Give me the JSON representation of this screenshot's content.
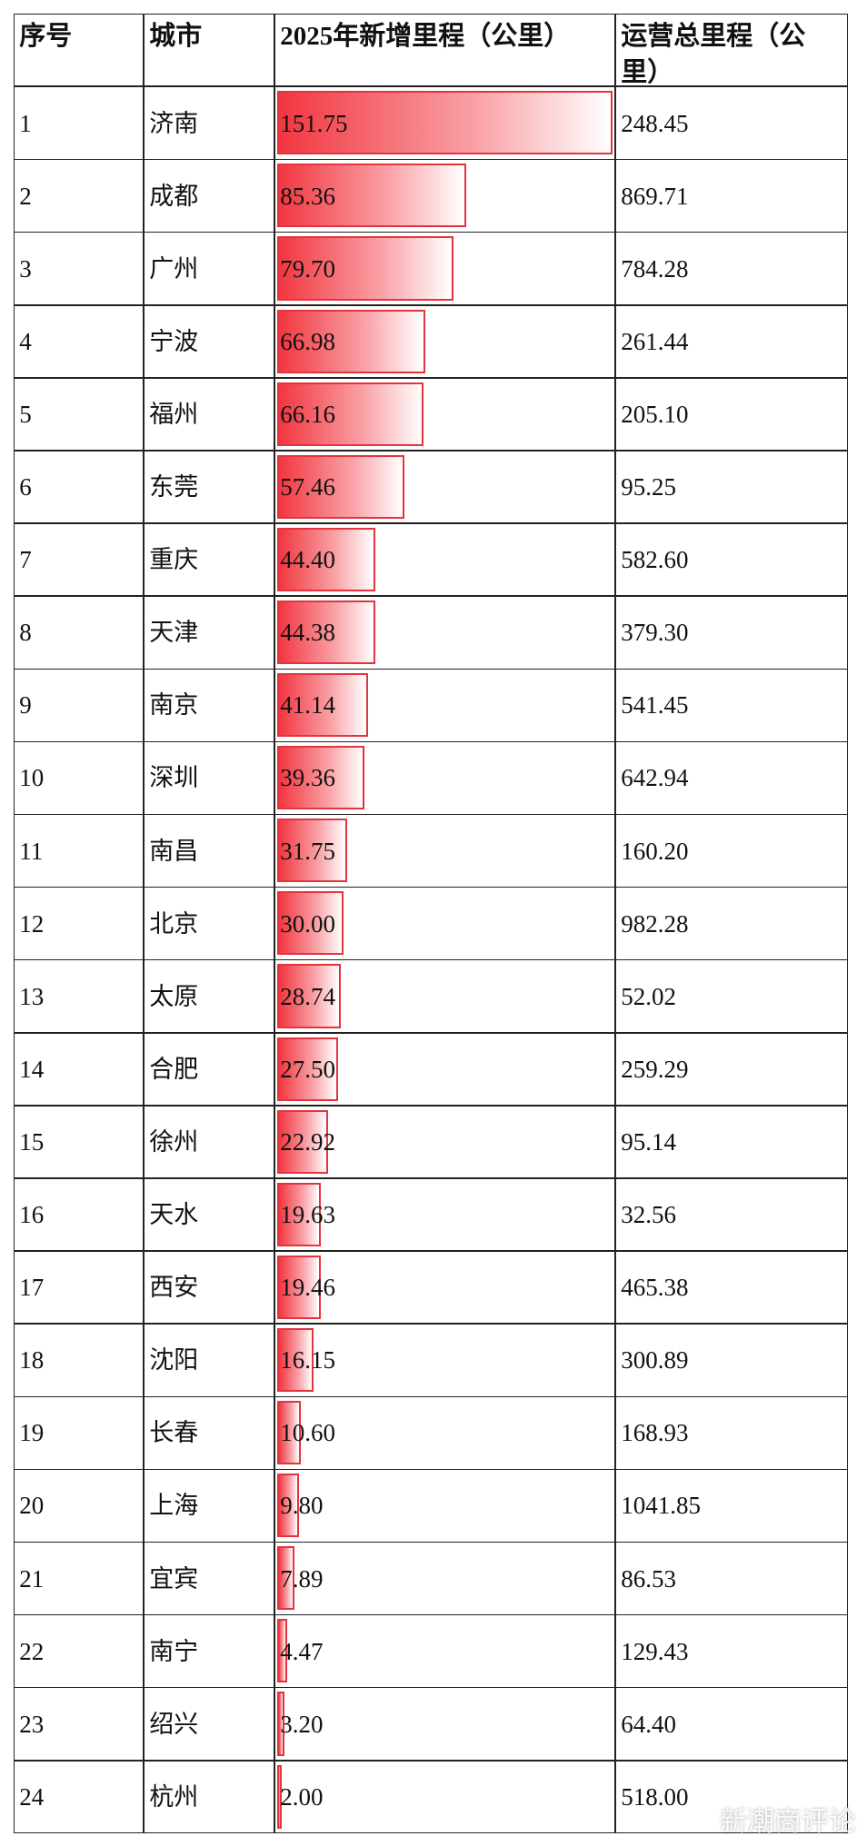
{
  "table": {
    "header": [
      "序号",
      "城市",
      "2025年新增里程（公里）",
      "运营总里程（公里）"
    ],
    "rows": [
      [
        "1",
        "济南",
        "151.75",
        "248.45"
      ],
      [
        "2",
        "成都",
        "85.36",
        "869.71"
      ],
      [
        "3",
        "广州",
        "79.70",
        "784.28"
      ],
      [
        "4",
        "宁波",
        "66.98",
        "261.44"
      ],
      [
        "5",
        "福州",
        "66.16",
        "205.10"
      ],
      [
        "6",
        "东莞",
        "57.46",
        "95.25"
      ],
      [
        "7",
        "重庆",
        "44.40",
        "582.60"
      ],
      [
        "8",
        "天津",
        "44.38",
        "379.30"
      ],
      [
        "9",
        "南京",
        "41.14",
        "541.45"
      ],
      [
        "10",
        "深圳",
        "39.36",
        "642.94"
      ],
      [
        "11",
        "南昌",
        "31.75",
        "160.20"
      ],
      [
        "12",
        "北京",
        "30.00",
        "982.28"
      ],
      [
        "13",
        "太原",
        "28.74",
        "52.02"
      ],
      [
        "14",
        "合肥",
        "27.50",
        "259.29"
      ],
      [
        "15",
        "徐州",
        "22.92",
        "95.14"
      ],
      [
        "16",
        "天水",
        "19.63",
        "32.56"
      ],
      [
        "17",
        "西安",
        "19.46",
        "465.38"
      ],
      [
        "18",
        "沈阳",
        "16.15",
        "300.89"
      ],
      [
        "19",
        "长春",
        "10.60",
        "168.93"
      ],
      [
        "20",
        "上海",
        "9.80",
        "1041.85"
      ],
      [
        "21",
        "宜宾",
        "7.89",
        "86.53"
      ],
      [
        "22",
        "南宁",
        "4.47",
        "129.43"
      ],
      [
        "23",
        "绍兴",
        "3.20",
        "64.40"
      ],
      [
        "24",
        "杭州",
        "2.00",
        "518.00"
      ]
    ]
  },
  "watermark": "新潮商评论"
}
